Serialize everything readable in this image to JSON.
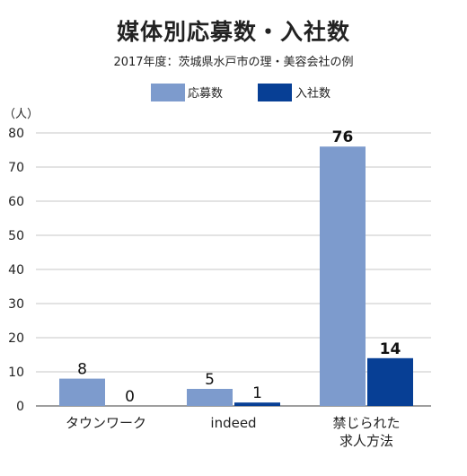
{
  "chart_data": {
    "type": "bar",
    "title": "媒体別応募数・入社数",
    "subtitle": "2017年度：茨城県水戸市の理・美容会社の例",
    "ylabel": "（人）",
    "ylim": [
      0,
      80
    ],
    "yticks": [
      0,
      10,
      20,
      30,
      40,
      50,
      60,
      70,
      80
    ],
    "grid": true,
    "legend_position": "top-center",
    "categories": [
      [
        "タウンワーク"
      ],
      [
        "indeed"
      ],
      [
        "禁じられた",
        "求人方法"
      ]
    ],
    "series": [
      {
        "name": "応募数",
        "color": "#7d9bcd",
        "values": [
          8,
          5,
          76
        ],
        "labels": [
          "8",
          "5",
          "76"
        ],
        "label_bold": [
          false,
          false,
          true
        ]
      },
      {
        "name": "入社数",
        "color": "#073f95",
        "values": [
          0,
          1,
          14
        ],
        "labels": [
          "0",
          "1",
          "14"
        ],
        "label_bold": [
          false,
          false,
          true
        ]
      }
    ]
  }
}
